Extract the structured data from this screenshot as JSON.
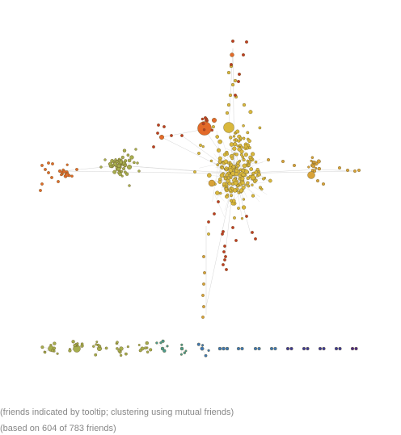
{
  "captions": {
    "line1": "(friends indicated by tooltip; clustering using mutual friends)",
    "line2": "(based on 604 of 783 friends)"
  },
  "colors": {
    "edge": "#d4d4d4",
    "node_stroke": "#6b5a2a",
    "yellow": "#d9b83c",
    "olive": "#a6ad4e",
    "orange": "#e36a2a",
    "red": "#c23b22",
    "dark_red": "#b0281f",
    "tan": "#d8a238",
    "teal": "#4b9a8f",
    "blue": "#3f78b5",
    "indigo": "#3c3b95",
    "purple": "#4c2a82"
  }
}
